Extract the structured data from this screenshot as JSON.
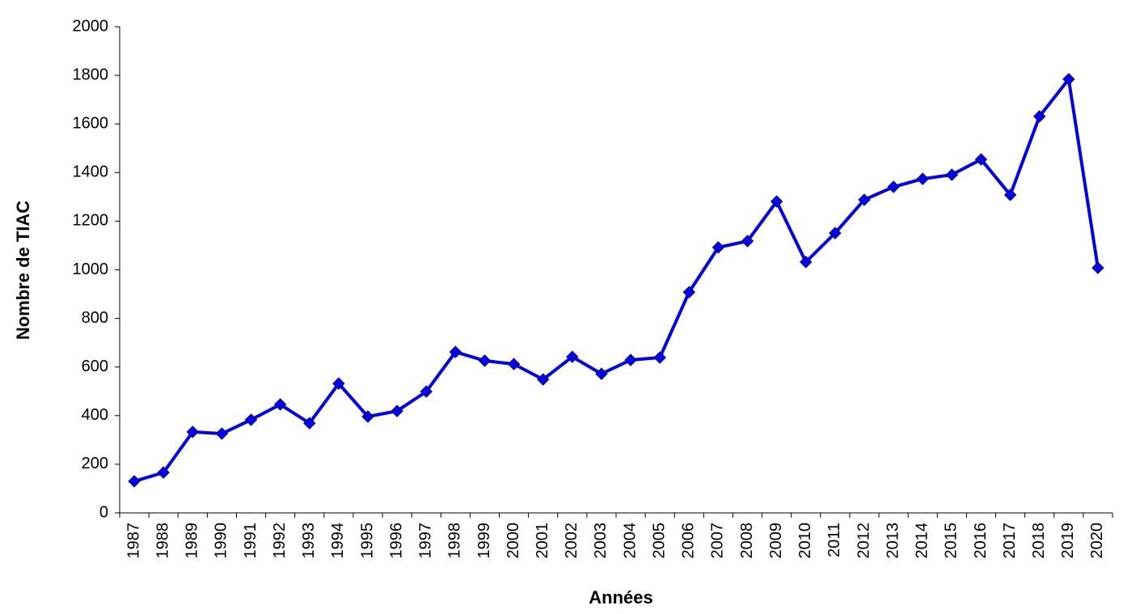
{
  "chart_data": {
    "type": "line",
    "x_label": "Années",
    "y_label": "Nombre de TIAC",
    "categories": [
      "1987",
      "1988",
      "1989",
      "1990",
      "1991",
      "1992",
      "1993",
      "1994",
      "1995",
      "1996",
      "1997",
      "1998",
      "1999",
      "2000",
      "2001",
      "2002",
      "2003",
      "2004",
      "2005",
      "2006",
      "2007",
      "2008",
      "2009",
      "2010",
      "2011",
      "2012",
      "2013",
      "2014",
      "2015",
      "2016",
      "2017",
      "2018",
      "2019",
      "2020"
    ],
    "series": [
      {
        "color": "#0000ee",
        "values": [
          130,
          166,
          333,
          326,
          383,
          446,
          369,
          532,
          396,
          419,
          499,
          662,
          626,
          612,
          549,
          642,
          572,
          629,
          639,
          908,
          1092,
          1118,
          1281,
          1032,
          1151,
          1288,
          1341,
          1374,
          1391,
          1454,
          1308,
          1631,
          1784,
          1008
        ]
      }
    ],
    "ylim": [
      0,
      2000
    ],
    "yticks": [
      0,
      200,
      400,
      600,
      800,
      1000,
      1200,
      1400,
      1600,
      1800,
      2000
    ],
    "grid": false
  }
}
